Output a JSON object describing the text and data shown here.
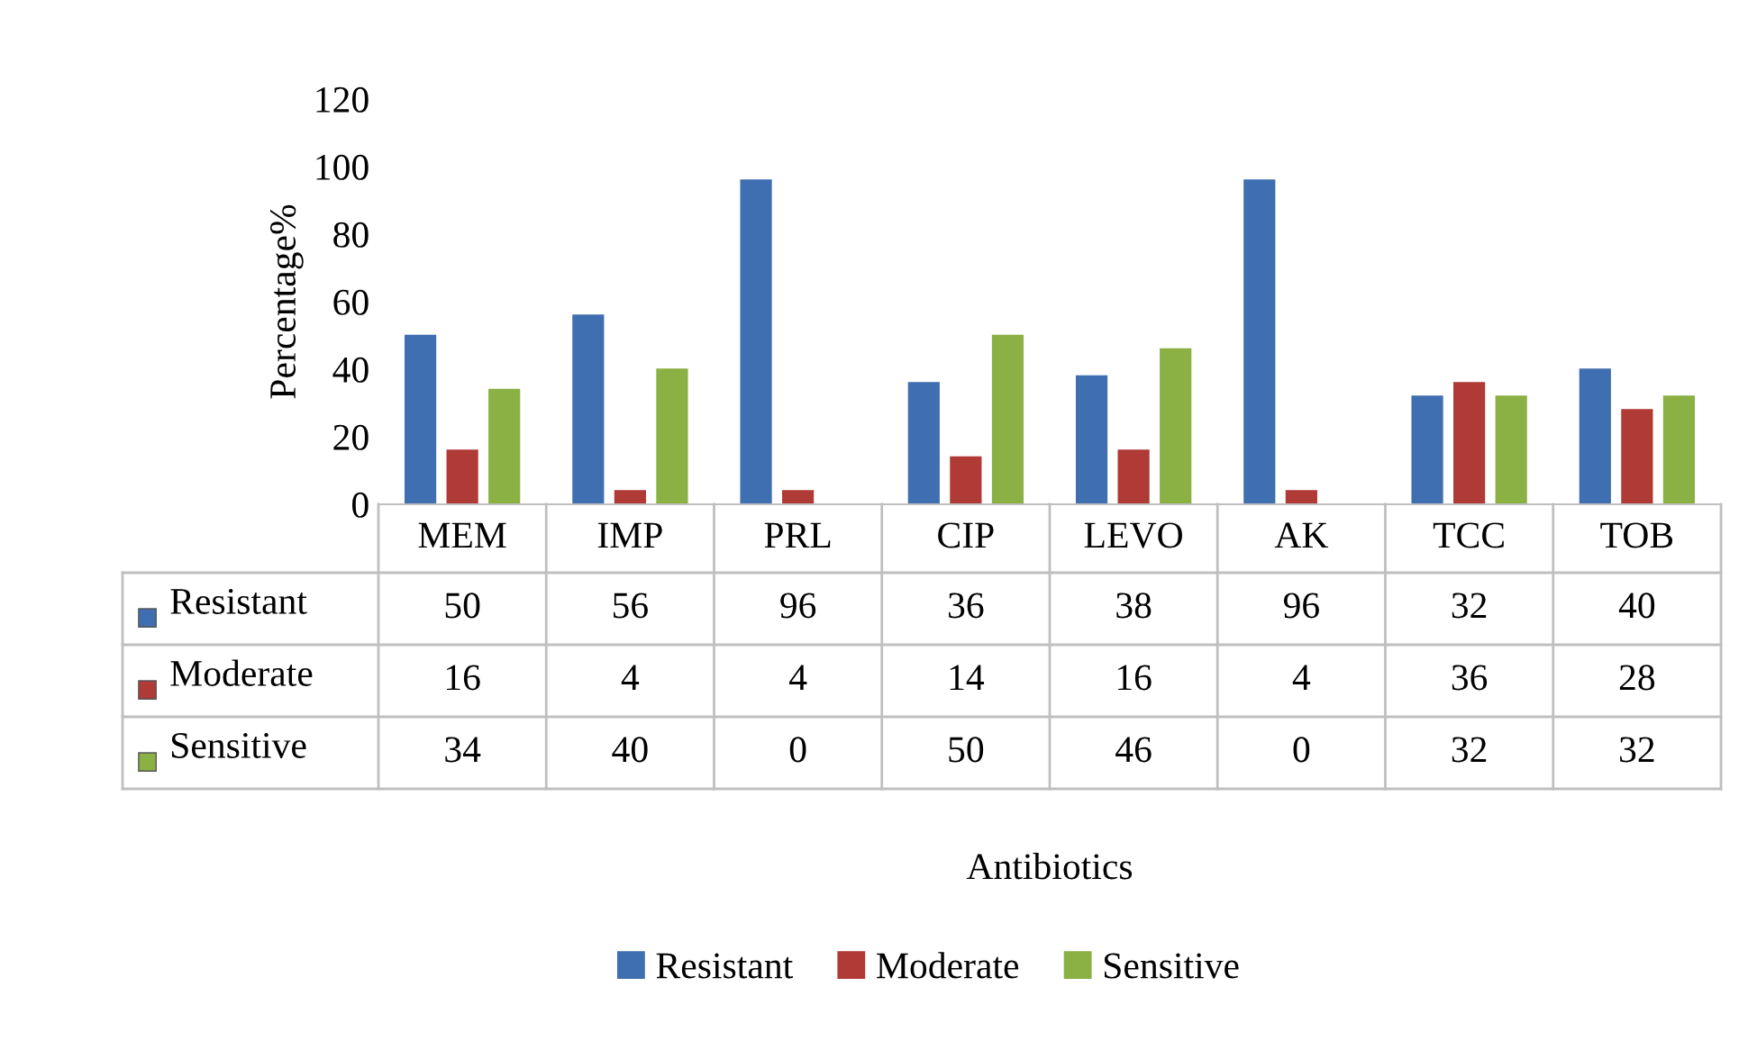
{
  "chart_data": {
    "type": "bar",
    "annotations": [
      "Antibiotics"
    ],
    "ylabel": "Percentage%",
    "categories": [
      "MEM",
      "IMP",
      "PRL",
      "CIP",
      "LEVO",
      "AK",
      "TCC",
      "TOB"
    ],
    "series": [
      {
        "name": "Resistant",
        "color": "#3f6fb0",
        "values": [
          50,
          56,
          96,
          36,
          38,
          96,
          32,
          40
        ]
      },
      {
        "name": "Moderate",
        "color": "#b03a36",
        "values": [
          16,
          4,
          4,
          14,
          16,
          4,
          36,
          28
        ]
      },
      {
        "name": "Sensitive",
        "color": "#8bb043",
        "values": [
          34,
          40,
          0,
          50,
          46,
          0,
          32,
          32
        ]
      }
    ],
    "ylim": [
      0,
      120
    ],
    "yticks": [
      0,
      20,
      40,
      60,
      80,
      100,
      120
    ],
    "grid": false,
    "legend": "bottom",
    "data_labels": true
  }
}
